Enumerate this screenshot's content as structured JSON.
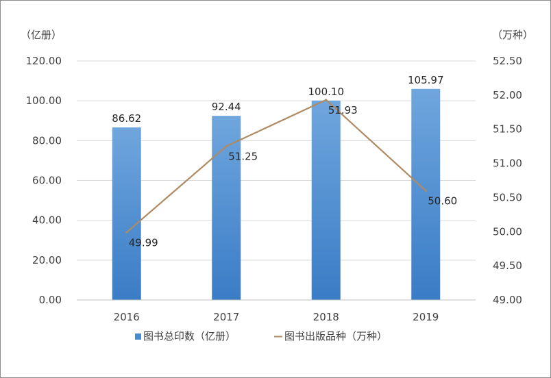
{
  "chart_data": {
    "type": "bar",
    "categories": [
      "2016",
      "2017",
      "2018",
      "2019"
    ],
    "series": [
      {
        "name": "图书总印数（亿册）",
        "type": "bar",
        "axis": "left",
        "values": [
          86.62,
          92.44,
          100.1,
          105.97
        ],
        "labels": [
          "86.62",
          "92.44",
          "100.10",
          "105.97"
        ],
        "color": "#4a8ad0"
      },
      {
        "name": "图书出版品种（万种）",
        "type": "line",
        "axis": "right",
        "values": [
          49.99,
          51.25,
          51.93,
          50.6
        ],
        "labels": [
          "49.99",
          "51.25",
          "51.93",
          "50.60"
        ],
        "color": "#b08a63"
      }
    ],
    "y_left": {
      "unit": "（亿册）",
      "ylim": [
        0,
        120
      ],
      "ticks": [
        "0.00",
        "20.00",
        "40.00",
        "60.00",
        "80.00",
        "100.00",
        "120.00"
      ]
    },
    "y_right": {
      "unit": "（万种）",
      "ylim": [
        49,
        52.5
      ],
      "ticks": [
        "49.00",
        "49.50",
        "50.00",
        "50.50",
        "51.00",
        "51.50",
        "52.00",
        "52.50"
      ]
    },
    "grid": true,
    "legend_position": "bottom"
  }
}
